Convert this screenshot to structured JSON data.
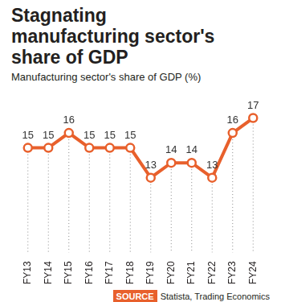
{
  "chart_data": {
    "type": "line",
    "title": "Stagnating manufacturing sector's share of GDP",
    "subtitle": "Manufacturing sector's share of GDP (%)",
    "categories": [
      "FY13",
      "FY14",
      "FY15",
      "FY16",
      "FY17",
      "FY18",
      "FY19",
      "FY20",
      "FY21",
      "FY22",
      "FY23",
      "FY24"
    ],
    "values": [
      15,
      15,
      16,
      15,
      15,
      15,
      13,
      14,
      14,
      13,
      16,
      17
    ],
    "color": "#e8602c",
    "marker": "circle",
    "ylim": [
      8,
      18
    ],
    "grid": false,
    "data_labels": true,
    "tick_labels": "x",
    "source": {
      "label": "SOURCE",
      "text": "Statista, Trading Economics"
    }
  }
}
